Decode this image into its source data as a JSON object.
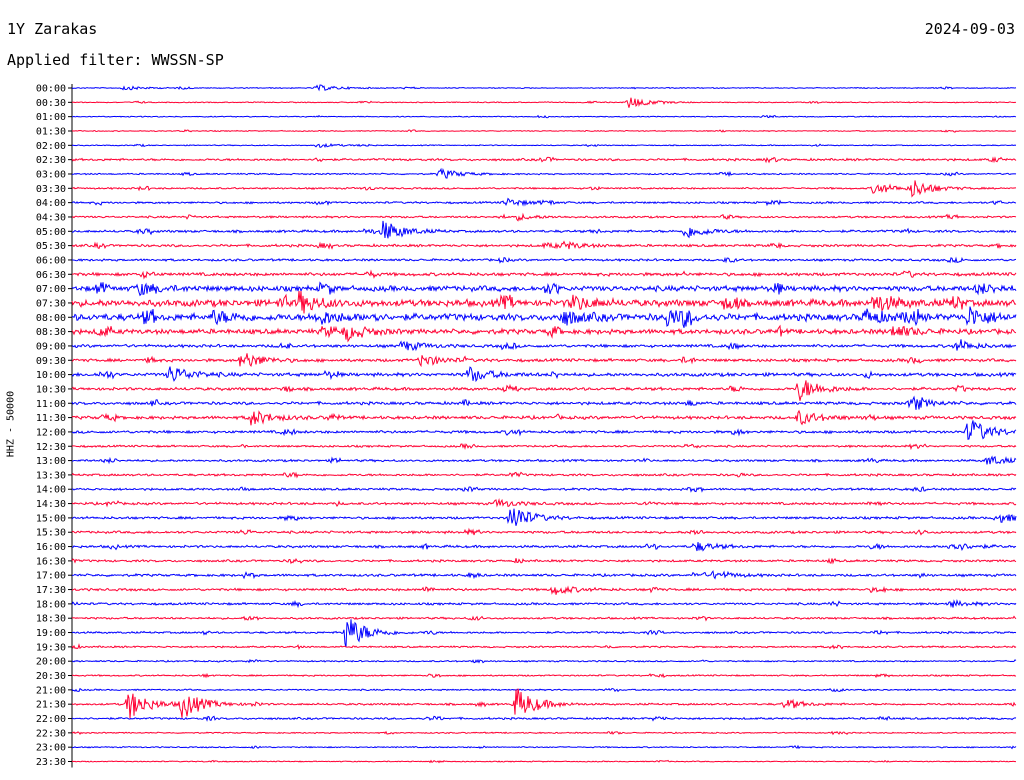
{
  "header": {
    "station": "1Y Zarakas",
    "date": "2024-09-03",
    "filter": "Applied filter: WWSSN-SP"
  },
  "chart_data": {
    "type": "line",
    "title": "1Y Zarakas",
    "subtitle": "Applied filter: WWSSN-SP",
    "ylabel": "HHZ - 50000",
    "xlabel": "",
    "colors": [
      "#0000ff",
      "#ff0033"
    ],
    "grid": false,
    "rows": [
      "00:00",
      "00:30",
      "01:00",
      "01:30",
      "02:00",
      "02:30",
      "03:00",
      "03:30",
      "04:00",
      "04:30",
      "05:00",
      "05:30",
      "06:00",
      "06:30",
      "07:00",
      "07:30",
      "08:00",
      "08:30",
      "09:00",
      "09:30",
      "10:00",
      "10:30",
      "11:00",
      "11:30",
      "12:00",
      "12:30",
      "13:00",
      "13:30",
      "14:00",
      "14:30",
      "15:00",
      "15:30",
      "16:00",
      "16:30",
      "17:00",
      "17:30",
      "18:00",
      "18:30",
      "19:00",
      "19:30",
      "20:00",
      "20:30",
      "21:00",
      "21:30",
      "22:00",
      "22:30",
      "23:00",
      "23:30"
    ],
    "noise": [
      0.4,
      0.4,
      0.4,
      0.4,
      0.4,
      0.9,
      0.6,
      0.7,
      0.8,
      0.8,
      1.0,
      1.0,
      0.9,
      1.3,
      2.2,
      2.8,
      2.8,
      2.0,
      1.2,
      1.2,
      1.4,
      1.2,
      1.2,
      1.3,
      1.1,
      0.8,
      0.9,
      0.9,
      0.9,
      1.0,
      1.0,
      1.0,
      1.0,
      0.9,
      1.0,
      1.0,
      0.9,
      0.8,
      0.8,
      0.7,
      0.6,
      0.6,
      0.6,
      0.8,
      0.8,
      0.5,
      0.5,
      0.4
    ],
    "events": [
      {
        "row": "00:00",
        "x": 0.055,
        "amp": 2
      },
      {
        "row": "00:00",
        "x": 0.26,
        "amp": 3
      },
      {
        "row": "00:30",
        "x": 0.59,
        "amp": 6
      },
      {
        "row": "02:00",
        "x": 0.26,
        "amp": 2
      },
      {
        "row": "03:00",
        "x": 0.39,
        "amp": 5
      },
      {
        "row": "03:30",
        "x": 0.85,
        "amp": 6
      },
      {
        "row": "03:30",
        "x": 0.89,
        "amp": 9
      },
      {
        "row": "04:00",
        "x": 0.46,
        "amp": 4
      },
      {
        "row": "04:30",
        "x": 0.47,
        "amp": 3
      },
      {
        "row": "05:00",
        "x": 0.33,
        "amp": 11
      },
      {
        "row": "05:00",
        "x": 0.65,
        "amp": 7
      },
      {
        "row": "05:30",
        "x": 0.52,
        "amp": 4
      },
      {
        "row": "07:00",
        "x": 0.07,
        "amp": 6
      },
      {
        "row": "07:00",
        "x": 0.96,
        "amp": 5
      },
      {
        "row": "07:30",
        "x": 0.24,
        "amp": 10
      },
      {
        "row": "07:30",
        "x": 0.53,
        "amp": 7
      },
      {
        "row": "07:30",
        "x": 0.85,
        "amp": 9
      },
      {
        "row": "08:00",
        "x": 0.15,
        "amp": 6
      },
      {
        "row": "08:00",
        "x": 0.26,
        "amp": 7
      },
      {
        "row": "08:00",
        "x": 0.52,
        "amp": 7
      },
      {
        "row": "08:00",
        "x": 0.63,
        "amp": 8
      },
      {
        "row": "08:00",
        "x": 0.84,
        "amp": 7
      },
      {
        "row": "08:00",
        "x": 0.95,
        "amp": 10
      },
      {
        "row": "08:30",
        "x": 0.29,
        "amp": 8
      },
      {
        "row": "08:30",
        "x": 0.87,
        "amp": 6
      },
      {
        "row": "09:00",
        "x": 0.35,
        "amp": 5
      },
      {
        "row": "09:00",
        "x": 0.94,
        "amp": 4
      },
      {
        "row": "09:30",
        "x": 0.18,
        "amp": 9
      },
      {
        "row": "09:30",
        "x": 0.37,
        "amp": 6
      },
      {
        "row": "10:00",
        "x": 0.104,
        "amp": 9
      },
      {
        "row": "10:00",
        "x": 0.42,
        "amp": 8
      },
      {
        "row": "10:30",
        "x": 0.77,
        "amp": 12
      },
      {
        "row": "11:00",
        "x": 0.89,
        "amp": 5
      },
      {
        "row": "11:30",
        "x": 0.19,
        "amp": 8
      },
      {
        "row": "11:30",
        "x": 0.77,
        "amp": 7
      },
      {
        "row": "12:00",
        "x": 0.95,
        "amp": 14
      },
      {
        "row": "13:00",
        "x": 0.97,
        "amp": 5
      },
      {
        "row": "14:30",
        "x": 0.45,
        "amp": 4
      },
      {
        "row": "15:00",
        "x": 0.465,
        "amp": 13
      },
      {
        "row": "15:00",
        "x": 0.98,
        "amp": 5
      },
      {
        "row": "16:00",
        "x": 0.66,
        "amp": 5
      },
      {
        "row": "16:00",
        "x": 0.93,
        "amp": 5
      },
      {
        "row": "17:00",
        "x": 0.68,
        "amp": 4
      },
      {
        "row": "17:30",
        "x": 0.51,
        "amp": 5
      },
      {
        "row": "18:00",
        "x": 0.93,
        "amp": 3
      },
      {
        "row": "19:00",
        "x": 0.29,
        "amp": 18
      },
      {
        "row": "21:30",
        "x": 0.06,
        "amp": 15
      },
      {
        "row": "21:30",
        "x": 0.117,
        "amp": 14
      },
      {
        "row": "21:30",
        "x": 0.47,
        "amp": 17
      },
      {
        "row": "21:30",
        "x": 0.755,
        "amp": 4
      }
    ]
  }
}
